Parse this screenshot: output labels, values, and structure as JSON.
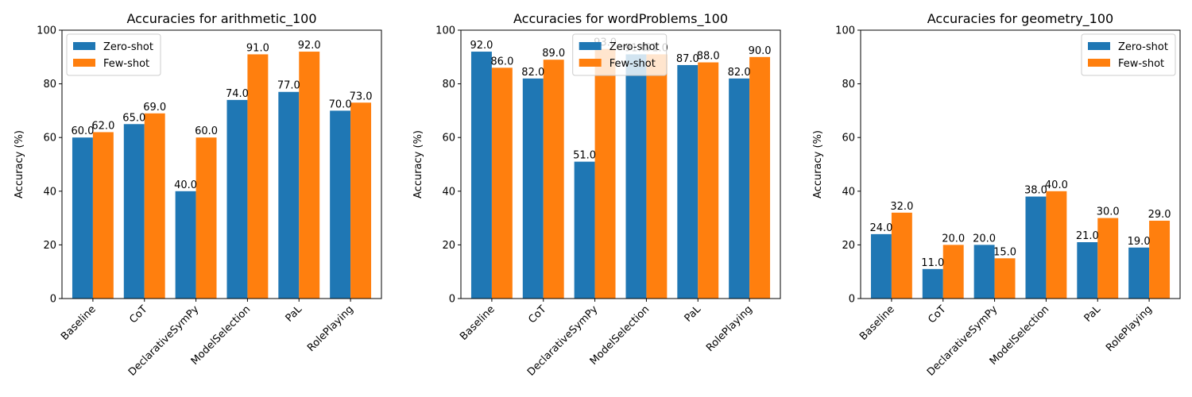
{
  "chart_data": [
    {
      "type": "bar",
      "title": "Accuracies for arithmetic_100",
      "xlabel": "",
      "ylabel": "Accuracy (%)",
      "ylim": [
        0,
        100
      ],
      "yticks": [
        "0",
        "20",
        "40",
        "60",
        "80",
        "100"
      ],
      "categories": [
        "Baseline",
        "CoT",
        "DeclarativeSymPy",
        "ModelSelection",
        "PaL",
        "RolePlaying"
      ],
      "series": [
        {
          "name": "Zero-shot",
          "values": [
            60.0,
            65.0,
            40.0,
            74.0,
            77.0,
            70.0
          ],
          "labels": [
            "60.0",
            "65.0",
            "40.0",
            "74.0",
            "77.0",
            "70.0"
          ]
        },
        {
          "name": "Few-shot",
          "values": [
            62.0,
            69.0,
            60.0,
            91.0,
            92.0,
            73.0
          ],
          "labels": [
            "62.0",
            "69.0",
            "60.0",
            "91.0",
            "92.0",
            "73.0"
          ]
        }
      ],
      "legend": "upper-left",
      "grid": false
    },
    {
      "type": "bar",
      "title": "Accuracies for wordProblems_100",
      "xlabel": "",
      "ylabel": "Accuracy (%)",
      "ylim": [
        0,
        100
      ],
      "yticks": [
        "0",
        "20",
        "40",
        "60",
        "80",
        "100"
      ],
      "categories": [
        "Baseline",
        "CoT",
        "DeclarativeSymPy",
        "ModelSelection",
        "PaL",
        "RolePlaying"
      ],
      "series": [
        {
          "name": "Zero-shot",
          "values": [
            92.0,
            82.0,
            51.0,
            91.0,
            87.0,
            82.0
          ],
          "labels": [
            "92.0",
            "82.0",
            "51.0",
            "91.0",
            "87.0",
            "82.0"
          ]
        },
        {
          "name": "Few-shot",
          "values": [
            86.0,
            89.0,
            93.0,
            91.0,
            88.0,
            90.0
          ],
          "labels": [
            "86.0",
            "89.0",
            "93.0",
            "91.0",
            "88.0",
            "90.0"
          ]
        }
      ],
      "legend": "upper-center",
      "grid": false
    },
    {
      "type": "bar",
      "title": "Accuracies for geometry_100",
      "xlabel": "",
      "ylabel": "Accuracy (%)",
      "ylim": [
        0,
        100
      ],
      "yticks": [
        "0",
        "20",
        "40",
        "60",
        "80",
        "100"
      ],
      "categories": [
        "Baseline",
        "CoT",
        "DeclarativeSymPy",
        "ModelSelection",
        "PaL",
        "RolePlaying"
      ],
      "series": [
        {
          "name": "Zero-shot",
          "values": [
            24.0,
            11.0,
            20.0,
            38.0,
            21.0,
            19.0
          ],
          "labels": [
            "24.0",
            "11.0",
            "20.0",
            "38.0",
            "21.0",
            "19.0"
          ]
        },
        {
          "name": "Few-shot",
          "values": [
            32.0,
            20.0,
            15.0,
            40.0,
            30.0,
            29.0
          ],
          "labels": [
            "32.0",
            "20.0",
            "15.0",
            "40.0",
            "30.0",
            "29.0"
          ]
        }
      ],
      "legend": "upper-right",
      "grid": false
    }
  ],
  "colors": {
    "zero_shot": "#1f77b4",
    "few_shot": "#ff7f0e",
    "axis": "#000000",
    "legend_border": "#cccccc"
  }
}
